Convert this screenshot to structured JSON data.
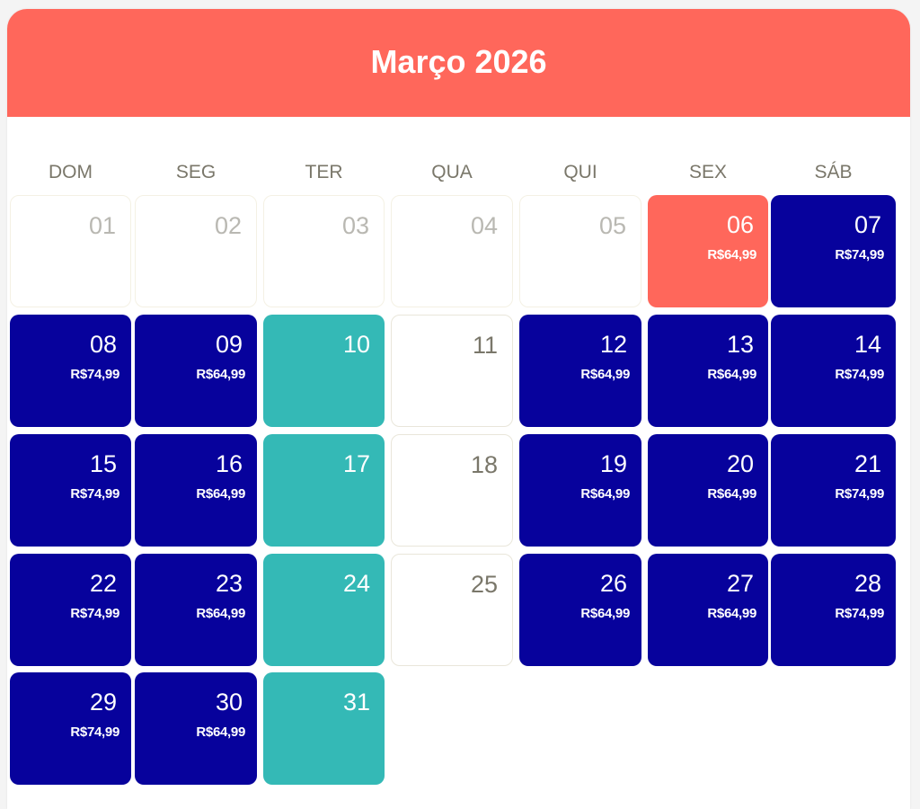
{
  "calendar": {
    "title": "Março 2026",
    "colors": {
      "header": "#ff675b",
      "available": "#07029c",
      "selected": "#ff675b",
      "closed": "#34b9b6",
      "past_text": "#b9b8b2",
      "weekday_text": "#7a776a"
    },
    "weekdays": [
      "DOM",
      "SEG",
      "TER",
      "QUA",
      "QUI",
      "SEX",
      "SÁB"
    ],
    "days": [
      {
        "num": "01",
        "status": "past",
        "price": ""
      },
      {
        "num": "02",
        "status": "past",
        "price": ""
      },
      {
        "num": "03",
        "status": "past",
        "price": ""
      },
      {
        "num": "04",
        "status": "past",
        "price": ""
      },
      {
        "num": "05",
        "status": "past",
        "price": ""
      },
      {
        "num": "06",
        "status": "selected",
        "price": "R$64,99"
      },
      {
        "num": "07",
        "status": "available",
        "price": "R$74,99"
      },
      {
        "num": "08",
        "status": "available",
        "price": "R$74,99"
      },
      {
        "num": "09",
        "status": "available",
        "price": "R$64,99"
      },
      {
        "num": "10",
        "status": "closed",
        "price": ""
      },
      {
        "num": "11",
        "status": "unavailable",
        "price": ""
      },
      {
        "num": "12",
        "status": "available",
        "price": "R$64,99"
      },
      {
        "num": "13",
        "status": "available",
        "price": "R$64,99"
      },
      {
        "num": "14",
        "status": "available",
        "price": "R$74,99"
      },
      {
        "num": "15",
        "status": "available",
        "price": "R$74,99"
      },
      {
        "num": "16",
        "status": "available",
        "price": "R$64,99"
      },
      {
        "num": "17",
        "status": "closed",
        "price": ""
      },
      {
        "num": "18",
        "status": "unavailable",
        "price": ""
      },
      {
        "num": "19",
        "status": "available",
        "price": "R$64,99"
      },
      {
        "num": "20",
        "status": "available",
        "price": "R$64,99"
      },
      {
        "num": "21",
        "status": "available",
        "price": "R$74,99"
      },
      {
        "num": "22",
        "status": "available",
        "price": "R$74,99"
      },
      {
        "num": "23",
        "status": "available",
        "price": "R$64,99"
      },
      {
        "num": "24",
        "status": "closed",
        "price": ""
      },
      {
        "num": "25",
        "status": "unavailable",
        "price": ""
      },
      {
        "num": "26",
        "status": "available",
        "price": "R$64,99"
      },
      {
        "num": "27",
        "status": "available",
        "price": "R$64,99"
      },
      {
        "num": "28",
        "status": "available",
        "price": "R$74,99"
      },
      {
        "num": "29",
        "status": "available",
        "price": "R$74,99"
      },
      {
        "num": "30",
        "status": "available",
        "price": "R$64,99"
      },
      {
        "num": "31",
        "status": "closed",
        "price": ""
      }
    ]
  }
}
